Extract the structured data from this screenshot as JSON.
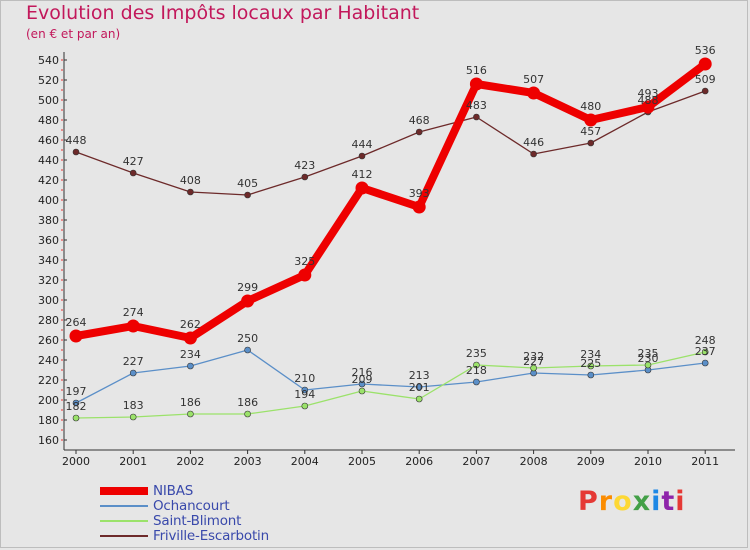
{
  "header": {
    "title": "Evolution des Impôts locaux par Habitant",
    "subtitle": "(en € et par an)"
  },
  "logo": {
    "text": "Proxiti",
    "colors": [
      "#e53935",
      "#fb8c00",
      "#fdd835",
      "#43a047",
      "#1e88e5",
      "#8e24aa",
      "#e53935"
    ]
  },
  "chart_data": {
    "type": "line",
    "title": "Evolution des Impôts locaux par Habitant",
    "subtitle": "(en € et par an)",
    "xlabel": "",
    "ylabel": "",
    "categories": [
      "2000",
      "2001",
      "2002",
      "2003",
      "2004",
      "2005",
      "2006",
      "2007",
      "2008",
      "2009",
      "2010",
      "2011"
    ],
    "ylim": [
      160,
      540
    ],
    "yticks": [
      160,
      180,
      200,
      220,
      240,
      260,
      280,
      300,
      320,
      340,
      360,
      380,
      400,
      420,
      440,
      460,
      480,
      500,
      520,
      540
    ],
    "grid": false,
    "legend_position": "bottom-left",
    "series": [
      {
        "name": "Friville-Escarbotin",
        "color": "#6d2a2a",
        "bold": false,
        "values": [
          448,
          427,
          408,
          405,
          423,
          444,
          468,
          483,
          446,
          457,
          488,
          509
        ]
      },
      {
        "name": "Ochancourt",
        "color": "#5b8fc8",
        "bold": false,
        "values": [
          197,
          227,
          234,
          250,
          210,
          216,
          213,
          218,
          227,
          225,
          230,
          237
        ]
      },
      {
        "name": "Saint-Blimont",
        "color": "#9be26a",
        "bold": false,
        "values": [
          182,
          183,
          186,
          186,
          194,
          209,
          201,
          235,
          232,
          234,
          235,
          248
        ]
      },
      {
        "name": "NIBAS",
        "color": "#ee0000",
        "bold": true,
        "values": [
          264,
          274,
          262,
          299,
          325,
          412,
          393,
          516,
          507,
          480,
          493,
          536
        ]
      }
    ],
    "legend": [
      "NIBAS",
      "Ochancourt",
      "Saint-Blimont",
      "Friville-Escarbotin"
    ]
  }
}
